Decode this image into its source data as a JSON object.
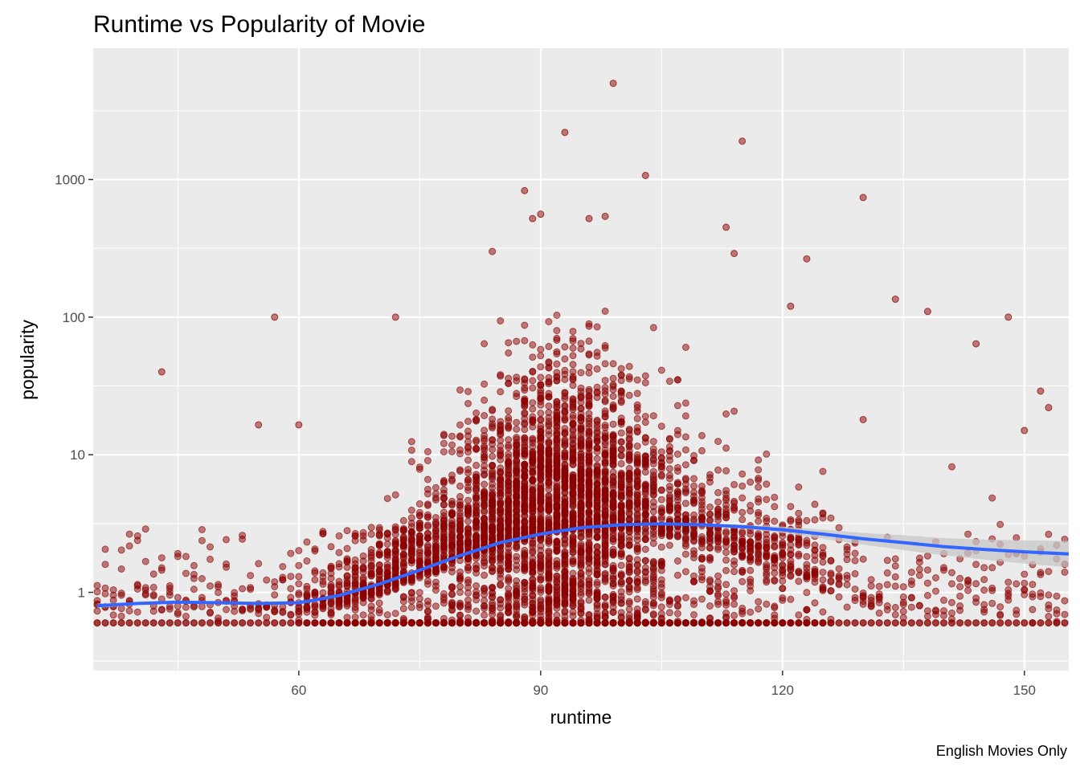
{
  "chart_data": {
    "type": "scatter",
    "title": "Runtime vs Popularity of Movie",
    "xlabel": "runtime",
    "ylabel": "popularity",
    "caption": "English Movies Only",
    "x_scale": "linear",
    "y_scale": "log10",
    "xlim": [
      34.5,
      155.5
    ],
    "ylim": [
      0.27,
      9000
    ],
    "x_ticks": [
      60,
      90,
      120,
      150
    ],
    "x_tick_labels": [
      "60",
      "90",
      "120",
      "150"
    ],
    "y_ticks": [
      1,
      10,
      100,
      1000
    ],
    "y_tick_labels": [
      "1",
      "10",
      "100",
      "1000"
    ],
    "grid": true,
    "legend": "none",
    "colors": {
      "panel": "#ebebeb",
      "grid": "#ffffff",
      "points": "#8b0000",
      "smooth_line": "#3366ff",
      "confidence_band": "#c7c7c7"
    },
    "highlighted_points": [
      {
        "x": 99,
        "y": 5000
      },
      {
        "x": 93,
        "y": 2200
      },
      {
        "x": 115,
        "y": 1900
      },
      {
        "x": 103,
        "y": 1070
      },
      {
        "x": 130,
        "y": 740
      },
      {
        "x": 88,
        "y": 830
      },
      {
        "x": 90,
        "y": 560
      },
      {
        "x": 89,
        "y": 520
      },
      {
        "x": 96,
        "y": 520
      },
      {
        "x": 98,
        "y": 540
      },
      {
        "x": 113,
        "y": 450
      },
      {
        "x": 84,
        "y": 300
      },
      {
        "x": 114,
        "y": 290
      },
      {
        "x": 123,
        "y": 265
      },
      {
        "x": 57,
        "y": 100
      },
      {
        "x": 72,
        "y": 100
      },
      {
        "x": 43,
        "y": 40
      },
      {
        "x": 148,
        "y": 100
      },
      {
        "x": 134,
        "y": 135
      },
      {
        "x": 138,
        "y": 110
      },
      {
        "x": 121,
        "y": 120
      },
      {
        "x": 144,
        "y": 64
      },
      {
        "x": 60,
        "y": 16.5
      },
      {
        "x": 55,
        "y": 16.5
      },
      {
        "x": 152,
        "y": 29
      },
      {
        "x": 153,
        "y": 22
      },
      {
        "x": 150,
        "y": 15
      },
      {
        "x": 130,
        "y": 18
      }
    ],
    "point_density_bands": [
      {
        "x_range": [
          35,
          60
        ],
        "y_range": [
          0.6,
          6
        ],
        "density": "sparse"
      },
      {
        "x_range": [
          60,
          75
        ],
        "y_range": [
          0.6,
          40
        ],
        "density": "moderate"
      },
      {
        "x_range": [
          75,
          110
        ],
        "y_range": [
          0.6,
          80
        ],
        "density": "very dense"
      },
      {
        "x_range": [
          110,
          125
        ],
        "y_range": [
          0.6,
          50
        ],
        "density": "moderate"
      },
      {
        "x_range": [
          125,
          155
        ],
        "y_range": [
          0.6,
          30
        ],
        "density": "sparse"
      }
    ],
    "floor_value": 0.6,
    "smooth_line": {
      "x": [
        35,
        40,
        45,
        50,
        55,
        60,
        62,
        65,
        70,
        75,
        80,
        85,
        90,
        95,
        100,
        105,
        110,
        115,
        120,
        125,
        130,
        135,
        140,
        145,
        150,
        155.5
      ],
      "y": [
        0.8,
        0.83,
        0.85,
        0.84,
        0.83,
        0.84,
        0.88,
        0.95,
        1.15,
        1.45,
        1.85,
        2.3,
        2.65,
        2.95,
        3.1,
        3.15,
        3.1,
        3.0,
        2.85,
        2.65,
        2.45,
        2.3,
        2.15,
        2.05,
        1.97,
        1.9
      ],
      "band_lower": [
        0.77,
        0.81,
        0.83,
        0.82,
        0.81,
        0.82,
        0.86,
        0.93,
        1.13,
        1.42,
        1.82,
        2.26,
        2.61,
        2.91,
        3.06,
        3.1,
        3.03,
        2.9,
        2.7,
        2.45,
        2.22,
        2.03,
        1.86,
        1.73,
        1.62,
        1.52
      ],
      "band_upper": [
        0.83,
        0.85,
        0.87,
        0.86,
        0.85,
        0.86,
        0.9,
        0.97,
        1.17,
        1.48,
        1.88,
        2.34,
        2.69,
        2.99,
        3.14,
        3.2,
        3.17,
        3.1,
        3.0,
        2.86,
        2.7,
        2.6,
        2.48,
        2.42,
        2.39,
        2.36
      ]
    }
  }
}
